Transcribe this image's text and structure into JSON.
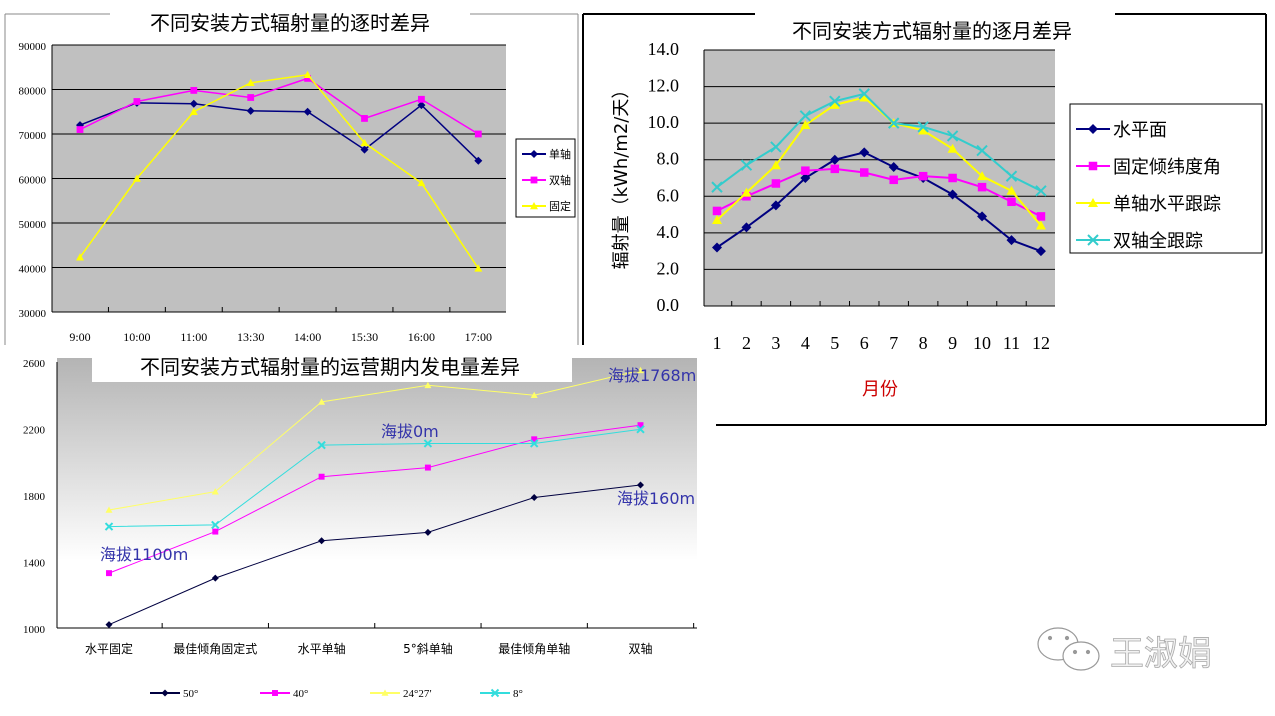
{
  "chart_data": [
    {
      "type": "line",
      "title": "不同安装方式辐射量的逐时差异",
      "categories": [
        "9:00",
        "10:00",
        "11:00",
        "13:30",
        "14:00",
        "15:30",
        "16:00",
        "17:00"
      ],
      "ylim": [
        30000,
        90000
      ],
      "yticks": [
        "30000",
        "40000",
        "50000",
        "60000",
        "70000",
        "80000",
        "90000"
      ],
      "grid": true,
      "legend": "right",
      "series": [
        {
          "name": "单轴",
          "color": "#000080",
          "marker": "diamond",
          "values": [
            72000,
            77000,
            76800,
            75200,
            75000,
            66500,
            76500,
            64000
          ]
        },
        {
          "name": "双轴",
          "color": "#ff00ff",
          "marker": "square",
          "values": [
            71000,
            77300,
            79800,
            78200,
            82500,
            73500,
            77800,
            70000
          ]
        },
        {
          "name": "固定",
          "color": "#ffff00",
          "marker": "triangle",
          "values": [
            42300,
            60000,
            75000,
            81500,
            83300,
            68000,
            59000,
            39800
          ]
        }
      ]
    },
    {
      "type": "line",
      "title": "不同安装方式辐射量的逐月差异",
      "xlabel": "月份",
      "ylabel": "辐射量（kWh/m2/天）",
      "categories": [
        "1",
        "2",
        "3",
        "4",
        "5",
        "6",
        "7",
        "8",
        "9",
        "10",
        "11",
        "12"
      ],
      "ylim": [
        0,
        14
      ],
      "yticks": [
        "0.0",
        "2.0",
        "4.0",
        "6.0",
        "8.0",
        "10.0",
        "12.0",
        "14.0"
      ],
      "grid": true,
      "legend": "right",
      "series": [
        {
          "name": "水平面",
          "color": "#000080",
          "marker": "diamond",
          "values": [
            3.2,
            4.3,
            5.5,
            7.0,
            8.0,
            8.4,
            7.6,
            7.0,
            6.1,
            4.9,
            3.6,
            3.0
          ]
        },
        {
          "name": "固定倾纬度角",
          "color": "#ff00ff",
          "marker": "square",
          "values": [
            5.2,
            6.0,
            6.7,
            7.4,
            7.5,
            7.3,
            6.9,
            7.1,
            7.0,
            6.5,
            5.7,
            4.9
          ]
        },
        {
          "name": "单轴水平跟踪",
          "color": "#ffff00",
          "marker": "triangle",
          "values": [
            4.7,
            6.2,
            7.7,
            9.9,
            11.0,
            11.4,
            10.0,
            9.6,
            8.6,
            7.1,
            6.3,
            4.4
          ]
        },
        {
          "name": "双轴全跟踪",
          "color": "#33cccc",
          "marker": "x",
          "values": [
            6.5,
            7.7,
            8.7,
            10.4,
            11.2,
            11.6,
            10.0,
            9.8,
            9.3,
            8.5,
            7.1,
            6.3
          ]
        }
      ]
    },
    {
      "type": "line",
      "title": "不同安装方式辐射量的运营期内发电量差异",
      "categories": [
        "水平固定",
        "最佳倾角固定式",
        "水平单轴",
        "5°斜单轴",
        "最佳倾角单轴",
        "双轴"
      ],
      "ylim": [
        1000,
        2600
      ],
      "yticks": [
        "1000",
        "1400",
        "1800",
        "2200",
        "2600"
      ],
      "grid": false,
      "legend": "bottom",
      "series": [
        {
          "name": "50°",
          "color": "#000040",
          "marker": "diamond",
          "values": [
            1020,
            1300,
            1525,
            1575,
            1785,
            1860
          ]
        },
        {
          "name": "40°",
          "color": "#ff00ff",
          "marker": "square",
          "values": [
            1330,
            1580,
            1910,
            1965,
            2135,
            2220
          ]
        },
        {
          "name": "24°27′",
          "color": "#ffff66",
          "marker": "triangle",
          "values": [
            1710,
            1820,
            2360,
            2460,
            2400,
            2550
          ]
        },
        {
          "name": "8°",
          "color": "#33dddd",
          "marker": "x",
          "values": [
            1610,
            1620,
            2100,
            2110,
            2110,
            2195
          ]
        }
      ],
      "annotations": [
        "海拔1768m",
        "海拔0m",
        "海拔160m",
        "海拔1100m"
      ]
    }
  ],
  "watermark": {
    "text": "王淑娟",
    "icon": "wechat-icon"
  }
}
